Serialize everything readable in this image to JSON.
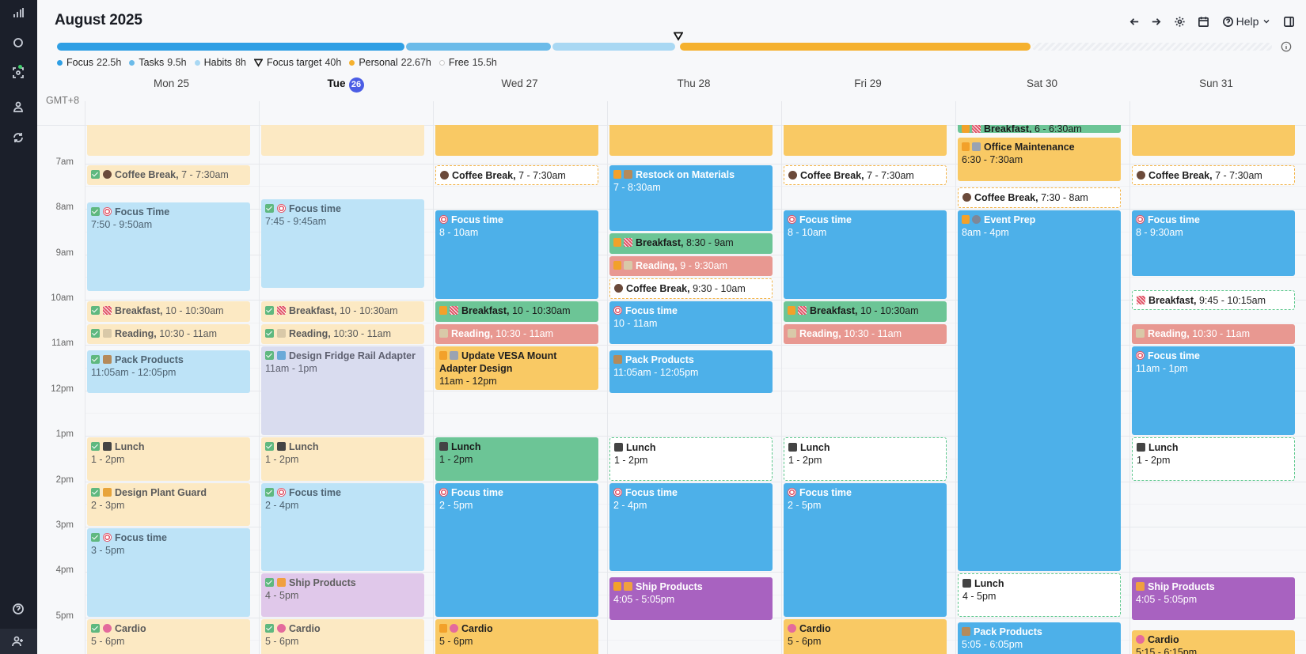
{
  "header": {
    "title": "August 2025",
    "help_label": "Help"
  },
  "legend": [
    {
      "label": "Focus",
      "value": "22.5h",
      "color": "#2f9fe4"
    },
    {
      "label": "Tasks",
      "value": "9.5h",
      "color": "#6bbbe9"
    },
    {
      "label": "Habits",
      "value": "8h",
      "color": "#a9d8f3"
    },
    {
      "label": "Focus target",
      "value": "40h",
      "color": "#1a1a1a"
    },
    {
      "label": "Personal",
      "value": "22.67h",
      "color": "#f5b12e"
    },
    {
      "label": "Free",
      "value": "15.5h",
      "color": "#e6e6e6"
    }
  ],
  "timezone": "GMT+8",
  "days": [
    {
      "label": "Mon 25"
    },
    {
      "label": "Tue",
      "badge": "26"
    },
    {
      "label": "Wed 27"
    },
    {
      "label": "Thu 28"
    },
    {
      "label": "Fri 29"
    },
    {
      "label": "Sat 30"
    },
    {
      "label": "Sun 31"
    }
  ],
  "hours": [
    "7am",
    "8am",
    "9am",
    "10am",
    "11am",
    "12pm",
    "1pm",
    "2pm",
    "3pm",
    "4pm",
    "5pm"
  ],
  "events": [
    {
      "day": 0,
      "start": 6.0,
      "end": 6.85,
      "title": "",
      "time": "",
      "style": "c-lyellow",
      "icon": ""
    },
    {
      "day": 0,
      "start": 7.0,
      "end": 7.5,
      "title": "Coffee Break,",
      "time": "7 - 7:30am",
      "style": "c-lyellow",
      "icon": "coffee",
      "check": true,
      "inline": true
    },
    {
      "day": 0,
      "start": 7.83,
      "end": 9.83,
      "title": "Focus Time",
      "time": "7:50 - 9:50am",
      "style": "c-lblue",
      "icon": "target",
      "check": true
    },
    {
      "day": 0,
      "start": 10.0,
      "end": 10.5,
      "title": "Breakfast,",
      "time": "10 - 10:30am",
      "style": "c-lyellow",
      "icon": "bacon",
      "check": true,
      "inline": true
    },
    {
      "day": 0,
      "start": 10.5,
      "end": 11.0,
      "title": "Reading,",
      "time": "10:30 - 11am",
      "style": "c-lyellow",
      "icon": "book",
      "check": true,
      "inline": true
    },
    {
      "day": 0,
      "start": 11.08,
      "end": 12.08,
      "title": "Pack Products",
      "time": "11:05am - 12:05pm",
      "style": "c-lblue",
      "icon": "box",
      "check": true
    },
    {
      "day": 0,
      "start": 13.0,
      "end": 14.0,
      "title": "Lunch",
      "time": "1 - 2pm",
      "style": "c-lyellow",
      "icon": "bento",
      "check": true
    },
    {
      "day": 0,
      "start": 14.0,
      "end": 15.0,
      "title": "Design Plant Guard",
      "time": "2 - 3pm",
      "style": "c-lyellow",
      "icon": "plant",
      "check": true
    },
    {
      "day": 0,
      "start": 15.0,
      "end": 17.0,
      "title": "Focus time",
      "time": "3 - 5pm",
      "style": "c-lblue",
      "icon": "target",
      "check": true
    },
    {
      "day": 0,
      "start": 17.0,
      "end": 18.0,
      "title": "Cardio",
      "time": "5 - 6pm",
      "style": "c-lyellow",
      "icon": "heart",
      "check": true
    },
    {
      "day": 1,
      "start": 6.0,
      "end": 6.85,
      "title": "",
      "time": "",
      "style": "c-lyellow",
      "icon": ""
    },
    {
      "day": 1,
      "start": 7.75,
      "end": 9.75,
      "title": "Focus time",
      "time": "7:45 - 9:45am",
      "style": "c-lblue",
      "icon": "target",
      "check": true
    },
    {
      "day": 1,
      "start": 10.0,
      "end": 10.5,
      "title": "Breakfast,",
      "time": "10 - 10:30am",
      "style": "c-lyellow",
      "icon": "bacon",
      "check": true,
      "inline": true
    },
    {
      "day": 1,
      "start": 10.5,
      "end": 11.0,
      "title": "Reading,",
      "time": "10:30 - 11am",
      "style": "c-lyellow",
      "icon": "book",
      "check": true,
      "inline": true
    },
    {
      "day": 1,
      "start": 11.0,
      "end": 13.0,
      "title": "Design Fridge Rail Adapter",
      "time": "11am - 1pm",
      "style": "c-lavender",
      "icon": "cube",
      "check": true
    },
    {
      "day": 1,
      "start": 13.0,
      "end": 14.0,
      "title": "Lunch",
      "time": "1 - 2pm",
      "style": "c-lyellow",
      "icon": "bento",
      "check": true
    },
    {
      "day": 1,
      "start": 14.0,
      "end": 16.0,
      "title": "Focus time",
      "time": "2 - 4pm",
      "style": "c-lblue",
      "icon": "target",
      "check": true
    },
    {
      "day": 1,
      "start": 16.0,
      "end": 17.0,
      "title": "Ship Products",
      "time": "4 - 5pm",
      "style": "c-lpurple",
      "icon": "truck",
      "check": true
    },
    {
      "day": 1,
      "start": 17.0,
      "end": 18.0,
      "title": "Cardio",
      "time": "5 - 6pm",
      "style": "c-lyellow",
      "icon": "heart",
      "check": true
    },
    {
      "day": 2,
      "start": 6.0,
      "end": 6.85,
      "title": "",
      "time": "",
      "style": "c-yellow",
      "icon": ""
    },
    {
      "day": 2,
      "start": 7.0,
      "end": 7.5,
      "title": "Coffee Break,",
      "time": "7 - 7:30am",
      "style": "c-dash-y",
      "icon": "coffee",
      "inline": true
    },
    {
      "day": 2,
      "start": 8.0,
      "end": 10.0,
      "title": "Focus time",
      "time": "8 - 10am",
      "style": "c-blue",
      "icon": "target"
    },
    {
      "day": 2,
      "start": 10.0,
      "end": 10.5,
      "title": "Breakfast,",
      "time": "10 - 10:30am",
      "style": "c-green",
      "icon": "bacon",
      "lock": true,
      "inline": true
    },
    {
      "day": 2,
      "start": 10.5,
      "end": 11.0,
      "title": "Reading,",
      "time": "10:30 - 11am",
      "style": "c-red",
      "icon": "book",
      "inline": true
    },
    {
      "day": 2,
      "start": 11.0,
      "end": 12.0,
      "title": "Update VESA Mount Adapter Design",
      "time": "11am - 12pm",
      "style": "c-yellow",
      "icon": "tool",
      "lock": true
    },
    {
      "day": 2,
      "start": 13.0,
      "end": 14.0,
      "title": "Lunch",
      "time": "1 - 2pm",
      "style": "c-green",
      "icon": "bento"
    },
    {
      "day": 2,
      "start": 14.0,
      "end": 17.0,
      "title": "Focus time",
      "time": "2 - 5pm",
      "style": "c-blue",
      "icon": "target"
    },
    {
      "day": 2,
      "start": 17.0,
      "end": 18.0,
      "title": "Cardio",
      "time": "5 - 6pm",
      "style": "c-yellow",
      "icon": "heart",
      "lock": true
    },
    {
      "day": 3,
      "start": 6.0,
      "end": 6.85,
      "title": "",
      "time": "",
      "style": "c-yellow",
      "icon": ""
    },
    {
      "day": 3,
      "start": 7.0,
      "end": 8.5,
      "title": "Restock on Materials",
      "time": "7 - 8:30am",
      "style": "c-blue",
      "icon": "box",
      "lock": true
    },
    {
      "day": 3,
      "start": 8.5,
      "end": 9.0,
      "title": "Breakfast,",
      "time": "8:30 - 9am",
      "style": "c-green",
      "icon": "bacon",
      "lock": true,
      "inline": true
    },
    {
      "day": 3,
      "start": 9.0,
      "end": 9.5,
      "title": "Reading,",
      "time": "9 - 9:30am",
      "style": "c-red",
      "icon": "book",
      "lock": true,
      "inline": true
    },
    {
      "day": 3,
      "start": 9.5,
      "end": 10.0,
      "title": "Coffee Break,",
      "time": "9:30 - 10am",
      "style": "c-dash-y",
      "icon": "coffee",
      "inline": true
    },
    {
      "day": 3,
      "start": 10.0,
      "end": 11.0,
      "title": "Focus time",
      "time": "10 - 11am",
      "style": "c-blue",
      "icon": "target"
    },
    {
      "day": 3,
      "start": 11.08,
      "end": 12.08,
      "title": "Pack Products",
      "time": "11:05am - 12:05pm",
      "style": "c-blue",
      "icon": "box"
    },
    {
      "day": 3,
      "start": 13.0,
      "end": 14.0,
      "title": "Lunch",
      "time": "1 - 2pm",
      "style": "c-dash-g",
      "icon": "bento"
    },
    {
      "day": 3,
      "start": 14.0,
      "end": 16.0,
      "title": "Focus time",
      "time": "2 - 4pm",
      "style": "c-blue",
      "icon": "target"
    },
    {
      "day": 3,
      "start": 16.08,
      "end": 17.08,
      "title": "Ship Products",
      "time": "4:05 - 5:05pm",
      "style": "c-purple",
      "icon": "truck",
      "lock": true
    },
    {
      "day": 4,
      "start": 6.0,
      "end": 6.85,
      "title": "",
      "time": "",
      "style": "c-yellow",
      "icon": ""
    },
    {
      "day": 4,
      "start": 7.0,
      "end": 7.5,
      "title": "Coffee Break,",
      "time": "7 - 7:30am",
      "style": "c-dash-y",
      "icon": "coffee",
      "inline": true
    },
    {
      "day": 4,
      "start": 8.0,
      "end": 10.0,
      "title": "Focus time",
      "time": "8 - 10am",
      "style": "c-blue",
      "icon": "target"
    },
    {
      "day": 4,
      "start": 10.0,
      "end": 10.5,
      "title": "Breakfast,",
      "time": "10 - 10:30am",
      "style": "c-green",
      "icon": "bacon",
      "lock": true,
      "inline": true
    },
    {
      "day": 4,
      "start": 10.5,
      "end": 11.0,
      "title": "Reading,",
      "time": "10:30 - 11am",
      "style": "c-red",
      "icon": "book",
      "inline": true
    },
    {
      "day": 4,
      "start": 13.0,
      "end": 14.0,
      "title": "Lunch",
      "time": "1 - 2pm",
      "style": "c-dash-g",
      "icon": "bento"
    },
    {
      "day": 4,
      "start": 14.0,
      "end": 17.0,
      "title": "Focus time",
      "time": "2 - 5pm",
      "style": "c-blue",
      "icon": "target"
    },
    {
      "day": 4,
      "start": 17.0,
      "end": 18.0,
      "title": "Cardio",
      "time": "5 - 6pm",
      "style": "c-yellow",
      "icon": "heart"
    },
    {
      "day": 5,
      "start": 6.0,
      "end": 6.35,
      "title": "Breakfast,",
      "time": "6 - 6:30am",
      "style": "c-green",
      "icon": "bacon",
      "lock": true,
      "inline": true
    },
    {
      "day": 5,
      "start": 6.4,
      "end": 7.4,
      "title": "Office Maintenance",
      "time": "6:30 - 7:30am",
      "style": "c-yellow",
      "icon": "tool",
      "lock": true
    },
    {
      "day": 5,
      "start": 7.5,
      "end": 8.0,
      "title": "Coffee Break,",
      "time": "7:30 - 8am",
      "style": "c-dash-y",
      "icon": "coffee",
      "inline": true
    },
    {
      "day": 5,
      "start": 8.0,
      "end": 16.0,
      "title": "Event Prep",
      "time": "8am - 4pm",
      "style": "c-blue",
      "icon": "gear",
      "lock": true
    },
    {
      "day": 5,
      "start": 16.0,
      "end": 17.0,
      "title": "Lunch",
      "time": "4 - 5pm",
      "style": "c-dash-g",
      "icon": "bento"
    },
    {
      "day": 5,
      "start": 17.08,
      "end": 18.08,
      "title": "Pack Products",
      "time": "5:05 - 6:05pm",
      "style": "c-blue",
      "icon": "box"
    },
    {
      "day": 6,
      "start": 6.0,
      "end": 6.85,
      "title": "",
      "time": "",
      "style": "c-yellow",
      "icon": ""
    },
    {
      "day": 6,
      "start": 7.0,
      "end": 7.5,
      "title": "Coffee Break,",
      "time": "7 - 7:30am",
      "style": "c-dash-y",
      "icon": "coffee",
      "inline": true
    },
    {
      "day": 6,
      "start": 8.0,
      "end": 9.5,
      "title": "Focus time",
      "time": "8 - 9:30am",
      "style": "c-blue",
      "icon": "target"
    },
    {
      "day": 6,
      "start": 9.75,
      "end": 10.25,
      "title": "Breakfast,",
      "time": "9:45 - 10:15am",
      "style": "c-dash-g",
      "icon": "bacon",
      "inline": true
    },
    {
      "day": 6,
      "start": 10.5,
      "end": 11.0,
      "title": "Reading,",
      "time": "10:30 - 11am",
      "style": "c-red",
      "icon": "book",
      "inline": true
    },
    {
      "day": 6,
      "start": 11.0,
      "end": 13.0,
      "title": "Focus time",
      "time": "11am - 1pm",
      "style": "c-blue",
      "icon": "target"
    },
    {
      "day": 6,
      "start": 13.0,
      "end": 14.0,
      "title": "Lunch",
      "time": "1 - 2pm",
      "style": "c-dash-g",
      "icon": "bento"
    },
    {
      "day": 6,
      "start": 16.08,
      "end": 17.08,
      "title": "Ship Products",
      "time": "4:05 - 5:05pm",
      "style": "c-purple",
      "icon": "truck"
    },
    {
      "day": 6,
      "start": 17.25,
      "end": 18.25,
      "title": "Cardio",
      "time": "5:15 - 6:15pm",
      "style": "c-yellow",
      "icon": "heart"
    }
  ]
}
